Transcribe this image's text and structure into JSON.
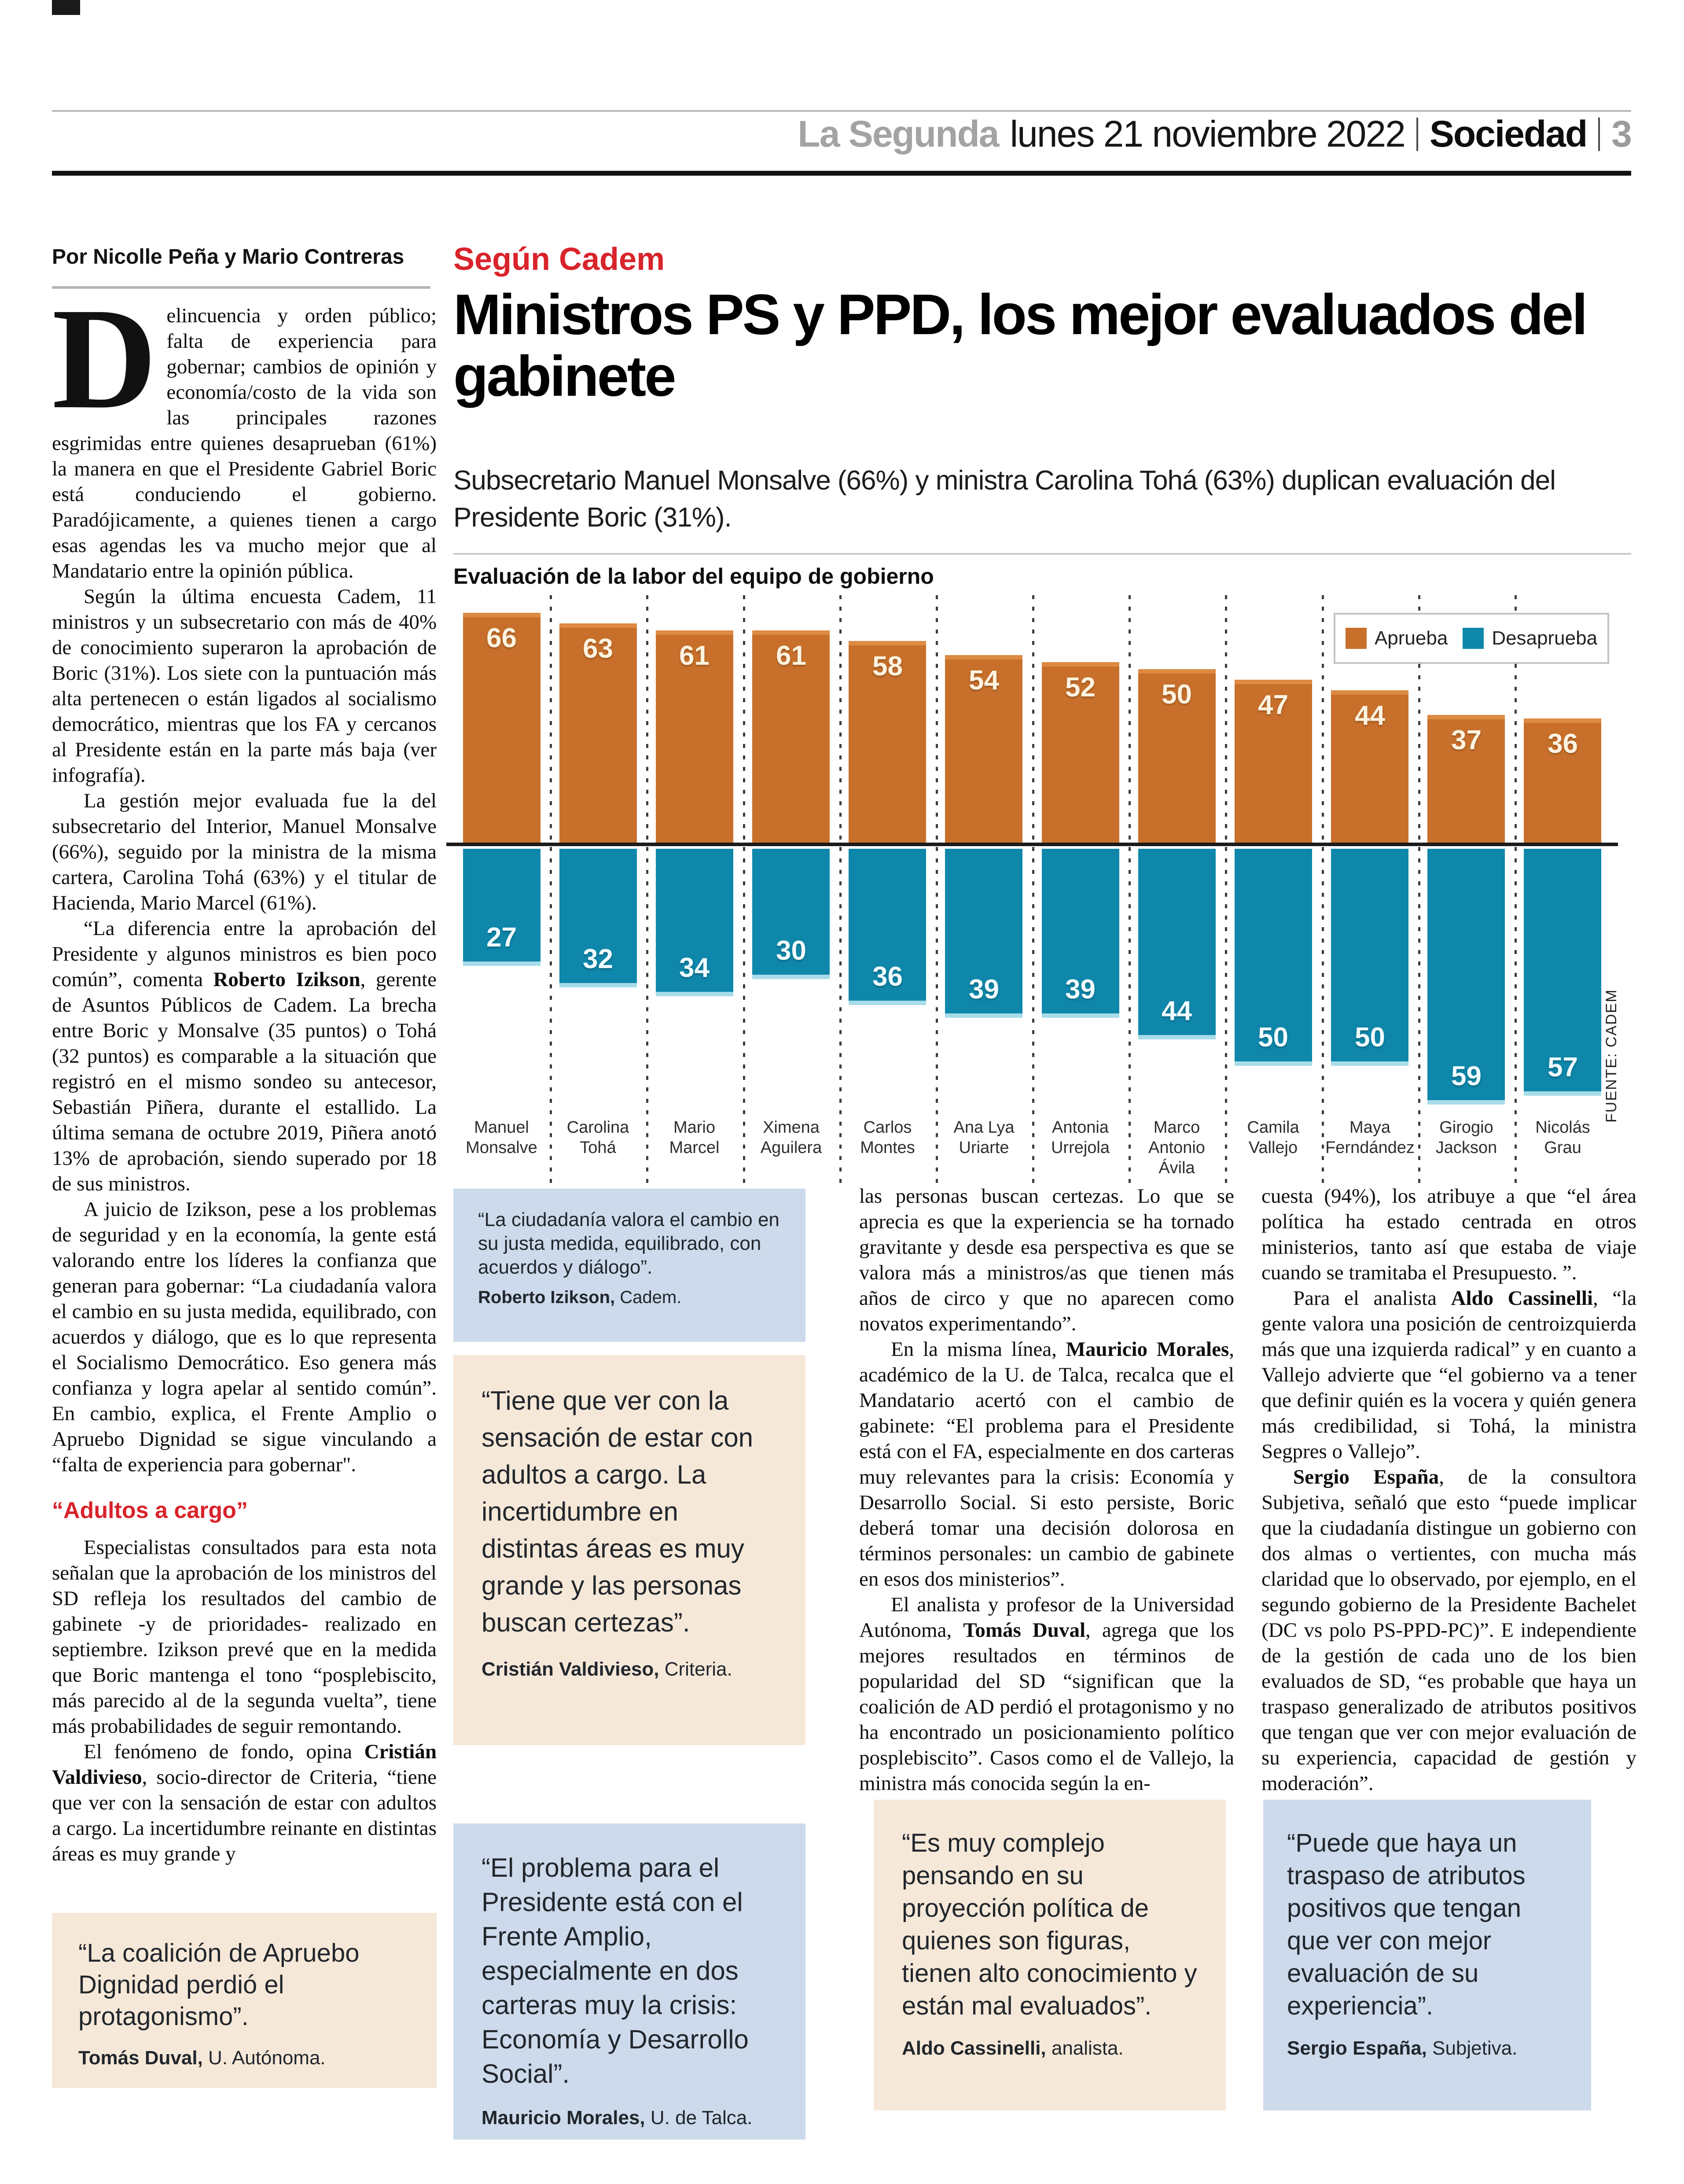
{
  "header": {
    "masthead": "La Segunda",
    "date": "lunes 21 noviembre 2022",
    "section": "Sociedad",
    "page_number": "3"
  },
  "byline": "Por Nicolle Peña y Mario Contreras",
  "kicker": "Según Cadem",
  "headline": "Ministros PS y PPD, los mejor evaluados del gabinete",
  "subhead": "Subsecretario Manuel Monsalve (66%) y ministra Carolina Tohá (63%) duplican evaluación del Presidente Boric (31%).",
  "colors": {
    "accent_red": "#d9232b",
    "approve_orange": "#c8702b",
    "disapprove_teal": "#0e87aa",
    "box_beige": "#f6e8d8",
    "box_blue": "#ccdaeb"
  },
  "chart_data": {
    "type": "bar",
    "title": "Evaluación de la labor del equipo de gobierno",
    "source": "FUENTE: CADEM",
    "legend_position": "top-right",
    "grid": "dotted column separators",
    "ylim": [
      -60,
      70
    ],
    "categories": [
      "Manuel\nMonsalve",
      "Carolina\nTohá",
      "Mario\nMarcel",
      "Ximena\nAguilera",
      "Carlos\nMontes",
      "Ana Lya\nUriarte",
      "Antonia\nUrrejola",
      "Marco\nAntonio\nÁvila",
      "Camila\nVallejo",
      "Maya\nFerndández",
      "Girogio\nJackson",
      "Nicolás\nGrau"
    ],
    "series": [
      {
        "name": "Aprueba",
        "color": "#c8702b",
        "values": [
          66,
          63,
          61,
          61,
          58,
          54,
          52,
          50,
          47,
          44,
          37,
          36
        ]
      },
      {
        "name": "Desaprueba",
        "color": "#0e87aa",
        "values": [
          27,
          32,
          34,
          30,
          36,
          39,
          39,
          44,
          50,
          50,
          59,
          57
        ]
      }
    ]
  },
  "article": {
    "col1": [
      {
        "cls": "first",
        "text": "elincuencia y orden público; falta de experiencia para gobernar; cambios de opinión y economía/costo de la vida son las principales razones esgrimidas entre quienes desaprueban (61%) la manera en que el Presidente Gabriel Boric está conduciendo el gobierno. Paradójicamente, a quienes tienen a cargo esas agendas les va mucho mejor que al Mandatario entre la opinión pública."
      },
      {
        "cls": "indent",
        "text": "Según la última encuesta Cadem, 11 ministros y un subsecretario con más de 40% de conocimiento superaron la aprobación de Boric (31%). Los siete con la puntuación más alta pertenecen o están ligados al socialismo democrático, mientras que los FA y cercanos al Presidente están en la parte más baja (ver infografía)."
      },
      {
        "cls": "indent",
        "text": "La gestión mejor evaluada fue la del subsecretario del Interior, Manuel Monsalve (66%), seguido por la ministra de la misma cartera, Carolina Tohá (63%) y el titular de Hacienda, Mario Marcel (61%)."
      },
      {
        "cls": "indent",
        "text": "“La diferencia entre la aprobación del Presidente y algunos ministros es bien poco común”, comenta **Roberto Izikson**, gerente de Asuntos Públicos de Cadem. La brecha entre Boric y Monsalve (35 puntos) o Tohá (32 puntos) es comparable a la situación que registró en el mismo sondeo su antecesor, Sebastián Piñera, durante el estallido. La última semana de octubre 2019, Piñera anotó 13% de aprobación, siendo superado por 18 de sus ministros."
      },
      {
        "cls": "indent",
        "text": "A juicio de Izikson, pese a los problemas de seguridad y en la economía, la gente está valorando entre los líderes la confianza que generan para gobernar: “La ciudadanía valora el cambio en su justa medida, equilibrado, con acuerdos y diálogo, que es lo que representa el Socialismo Democrático. Eso genera más confianza y logra apelar al sentido común”. En cambio, explica, el Frente Amplio o Apruebo Dignidad se sigue vinculando a “falta de experiencia para gobernar\"."
      },
      {
        "cls": "redsub",
        "text": "“Adultos a cargo”"
      },
      {
        "cls": "indent",
        "text": "Especialistas consultados para esta nota señalan que la aprobación de los ministros del SD refleja los resultados del cambio de gabinete -y de prioridades- realizado en septiembre. Izikson prevé que en la medida que Boric mantenga el tono “posplebiscito, más parecido al de la segunda vuelta”, tiene más probabilidades de seguir remontando."
      },
      {
        "cls": "indent",
        "text": "El fenómeno de fondo, opina **Cristián Valdivieso**, socio-director de Criteria, “tiene que ver con la sensación de estar con adultos a cargo. La incertidumbre reinante en distintas áreas es muy grande y"
      }
    ],
    "col3": [
      {
        "cls": "cont",
        "text": "las personas buscan certezas. Lo que se aprecia es que la experiencia se ha tornado gravitante y desde esa perspectiva es que se valora más a ministros/as que tienen más años de circo y que no aparecen como novatos experimentando”."
      },
      {
        "cls": "indent",
        "text": "En la misma línea, **Mauricio Morales**, académico de la U. de Talca, recalca que el Mandatario acertó con el cambio de gabinete: “El problema para el Presidente está con el FA, especialmente en dos carteras muy relevantes para la crisis: Economía y Desarrollo Social. Si esto persiste, Boric deberá tomar una decisión dolorosa en términos personales: un cambio de gabinete en esos dos ministerios”."
      },
      {
        "cls": "indent",
        "text": "El analista y profesor de la Universidad Autónoma, **Tomás Duval**, agrega que los mejores resultados en términos de popularidad del SD “significan que la coalición de AD perdió el protagonismo y no ha encontrado un posicionamiento político posplebiscito”. Casos como el de Vallejo, la ministra más conocida según la en-"
      }
    ],
    "col4": [
      {
        "cls": "cont",
        "text": "cuesta (94%), los atribuye a que “el área política ha estado centrada en otros ministerios, tanto así que estaba de viaje cuando se tramitaba el Presupuesto. ”."
      },
      {
        "cls": "indent",
        "text": "Para el analista **Aldo Cassinelli**, “la gente valora una posición de centroizquierda más que una izquierda radical” y en cuanto a Vallejo advierte que “el gobierno va a tener que definir quién es la vocera y quién genera más credibilidad, si Tohá, la ministra Segpres o Vallejo”."
      },
      {
        "cls": "indent",
        "text": "**Sergio España**, de la consultora Subjetiva, señaló que esto “puede implicar que la ciudadanía distingue un gobierno con dos almas o vertientes, con mucha más claridad que lo observado, por ejemplo, en el segundo gobierno de la Presidente Bachelet (DC vs polo PS-PPD-PC)”. E independiente de la gestión de cada uno de los bien evaluados de SD, “es probable que haya un traspaso generalizado de atributos positivos que tengan que ver con mejor evaluación de su experiencia, capacidad de gestión y moderación”."
      }
    ]
  },
  "quotes": [
    {
      "text": "“La ciudadanía valora el cambio en su justa medida, equilibrado, con acuerdos y diálogo”.",
      "name": "Roberto Izikson,",
      "role": " Cadem.",
      "bg": "blue"
    },
    {
      "text": "“Tiene que ver con la sensación de estar con adultos a cargo. La incertidumbre en distintas áreas es muy grande y las personas buscan certezas”.",
      "name": "Cristián Valdivieso,",
      "role": " Criteria.",
      "bg": "beige"
    },
    {
      "text": "“El problema para el Presidente está con el Frente Amplio, especialmente en dos carteras muy la crisis: Economía y Desarrollo Social”.",
      "name": "Mauricio Morales,",
      "role": " U. de Talca.",
      "bg": "blue"
    },
    {
      "text": "“La coalición de Apruebo Dignidad perdió el protagonismo”.",
      "name": "Tomás Duval,",
      "role": " U. Autónoma.",
      "bg": "beige"
    },
    {
      "text": "“Es muy complejo pensando en su proyección política de quienes son figuras, tienen alto conocimiento y están mal evaluados”.",
      "name": "Aldo Cassinelli,",
      "role": " analista.",
      "bg": "beige"
    },
    {
      "text": "“Puede que haya un traspaso de atributos positivos que tengan que ver con mejor evaluación de su experiencia”.",
      "name": "Sergio España,",
      "role": " Subjetiva.",
      "bg": "blue"
    }
  ]
}
